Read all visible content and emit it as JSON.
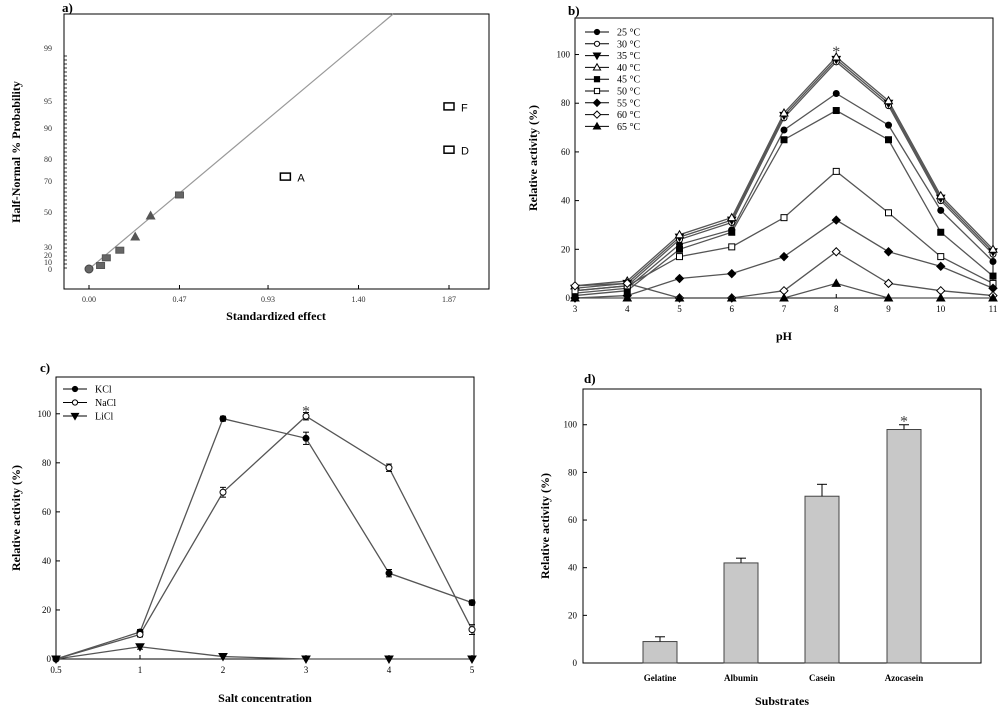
{
  "chart_data": [
    {
      "id": "a",
      "type": "scatter",
      "panel_label": "a)",
      "xlabel": "Standardized  effect",
      "ylabel": "Half-Normal  % Probability",
      "x_ticks": [
        "0.00",
        "0.47",
        "0.93",
        "1.40",
        "1.87"
      ],
      "x_tick_values": [
        0,
        0.47,
        0.93,
        1.4,
        1.87
      ],
      "y_ticks": [
        "0",
        "10",
        "20",
        "30",
        "50",
        "70",
        "80",
        "90",
        "95",
        "99"
      ],
      "y_tick_values": [
        0,
        10,
        20,
        30,
        50,
        70,
        80,
        90,
        95,
        99
      ],
      "xlim": [
        -0.1,
        2.0
      ],
      "reference_line": [
        [
          0,
          0
        ],
        [
          1.58,
          115
        ]
      ],
      "points": [
        {
          "x": 0.0,
          "y": 0,
          "marker": "circle"
        },
        {
          "x": 0.06,
          "y": 5,
          "marker": "square"
        },
        {
          "x": 0.09,
          "y": 16,
          "marker": "square"
        },
        {
          "x": 0.16,
          "y": 26,
          "marker": "square"
        },
        {
          "x": 0.24,
          "y": 36,
          "marker": "triangle"
        },
        {
          "x": 0.32,
          "y": 48,
          "marker": "triangle"
        },
        {
          "x": 0.47,
          "y": 61,
          "marker": "square"
        }
      ],
      "labeled_points": [
        {
          "label": "A",
          "x": 1.02,
          "y": 72
        },
        {
          "label": "D",
          "x": 1.87,
          "y": 83
        },
        {
          "label": "F",
          "x": 1.87,
          "y": 94
        }
      ]
    },
    {
      "id": "b",
      "type": "line",
      "panel_label": "b)",
      "xlabel": "pH",
      "ylabel": "Relative activity (%)",
      "x": [
        3,
        4,
        5,
        6,
        7,
        8,
        9,
        10,
        11
      ],
      "xlim": [
        3,
        11
      ],
      "ylim": [
        0,
        115
      ],
      "y_ticks": [
        0,
        20,
        40,
        60,
        80,
        100
      ],
      "legend_position": "top-left",
      "annotation": {
        "text": "*",
        "x": 8,
        "y": 103
      },
      "series": [
        {
          "name": "25 °C",
          "marker": "filled-circle",
          "values": [
            2,
            4,
            22,
            28,
            69,
            84,
            71,
            36,
            15
          ]
        },
        {
          "name": "30 °C",
          "marker": "open-circle",
          "values": [
            3,
            5,
            24,
            31,
            74,
            97,
            79,
            40,
            18
          ]
        },
        {
          "name": "35 °C",
          "marker": "filled-triangle-down",
          "values": [
            4,
            6,
            25,
            32,
            75,
            98,
            80,
            41,
            19
          ]
        },
        {
          "name": "40 °C",
          "marker": "open-triangle",
          "values": [
            5,
            7,
            26,
            33,
            76,
            99,
            81,
            42,
            20
          ]
        },
        {
          "name": "45 °C",
          "marker": "filled-square",
          "values": [
            1,
            3,
            20,
            27,
            65,
            77,
            65,
            27,
            9
          ]
        },
        {
          "name": "50 °C",
          "marker": "open-square",
          "values": [
            3,
            5,
            17,
            21,
            33,
            52,
            35,
            17,
            6
          ]
        },
        {
          "name": "55 °C",
          "marker": "filled-diamond",
          "values": [
            0,
            1,
            8,
            10,
            17,
            32,
            19,
            13,
            4
          ]
        },
        {
          "name": "60 °C",
          "marker": "open-diamond",
          "values": [
            5,
            6,
            0,
            0,
            3,
            19,
            6,
            3,
            1
          ]
        },
        {
          "name": "65 °C",
          "marker": "filled-triangle-up",
          "values": [
            0,
            0,
            0,
            0,
            0,
            6,
            0,
            0,
            0
          ]
        }
      ]
    },
    {
      "id": "c",
      "type": "line",
      "panel_label": "c)",
      "xlabel": "Salt concentration",
      "ylabel": "Relative activity (%)",
      "x": [
        0.5,
        1,
        2,
        3,
        4,
        5
      ],
      "x_ticks": [
        "0.5",
        "1",
        "2",
        "3",
        "4",
        "5"
      ],
      "ylim": [
        0,
        115
      ],
      "y_ticks": [
        0,
        20,
        40,
        60,
        80,
        100
      ],
      "legend_position": "top-left",
      "annotation": {
        "text": "*",
        "x": 3,
        "y": 103
      },
      "series": [
        {
          "name": "KCl",
          "marker": "filled-circle",
          "values": [
            0,
            11,
            98,
            90,
            35,
            23
          ],
          "errors": [
            0,
            1,
            1,
            2.5,
            1.5,
            1
          ]
        },
        {
          "name": "NaCl",
          "marker": "open-circle",
          "values": [
            0,
            10,
            68,
            99,
            78,
            12
          ],
          "errors": [
            0,
            1,
            2,
            1.5,
            1.5,
            2
          ]
        },
        {
          "name": "LiCl",
          "marker": "filled-triangle-down",
          "values": [
            0,
            5,
            1,
            0,
            0,
            0
          ],
          "errors": [
            0,
            1,
            0,
            0,
            0,
            0
          ]
        }
      ]
    },
    {
      "id": "d",
      "type": "bar",
      "panel_label": "d)",
      "xlabel": "Substrates",
      "ylabel": "Relative activity (%)",
      "categories": [
        "Gelatine",
        "Albumin",
        "Casein",
        "Azocasein"
      ],
      "values": [
        9,
        42,
        70,
        98
      ],
      "errors": [
        2,
        2,
        5,
        2
      ],
      "ylim": [
        0,
        115
      ],
      "y_ticks": [
        0,
        20,
        40,
        60,
        80,
        100
      ],
      "annotation": {
        "text": "*",
        "category": "Azocasein"
      },
      "bar_color": "#c8c8c8"
    }
  ]
}
